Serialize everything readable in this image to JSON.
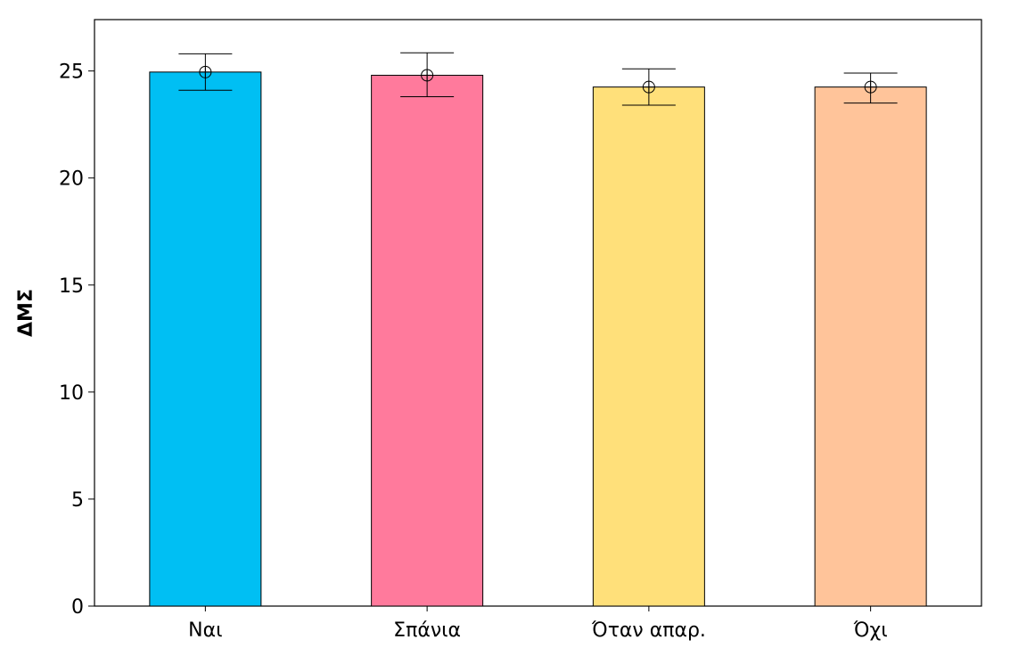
{
  "chart_data": {
    "type": "bar",
    "title": "",
    "xlabel": "",
    "ylabel": "ΔΜΣ",
    "categories": [
      "Ναι",
      "Σπάνια",
      "Όταν απαρ.",
      "Όχι"
    ],
    "values": [
      24.95,
      24.8,
      24.25,
      24.25
    ],
    "error_low": [
      24.1,
      23.8,
      23.4,
      23.5
    ],
    "error_high": [
      25.8,
      25.85,
      25.1,
      24.9
    ],
    "means": [
      24.95,
      24.8,
      24.25,
      24.25
    ],
    "colors": [
      "#00BFF3",
      "#FF7A9C",
      "#FFE07A",
      "#FFC49A"
    ],
    "ylim": [
      0,
      27.4
    ],
    "yticks": [
      0,
      5,
      10,
      15,
      20,
      25
    ],
    "grid": false,
    "legend": "none"
  }
}
